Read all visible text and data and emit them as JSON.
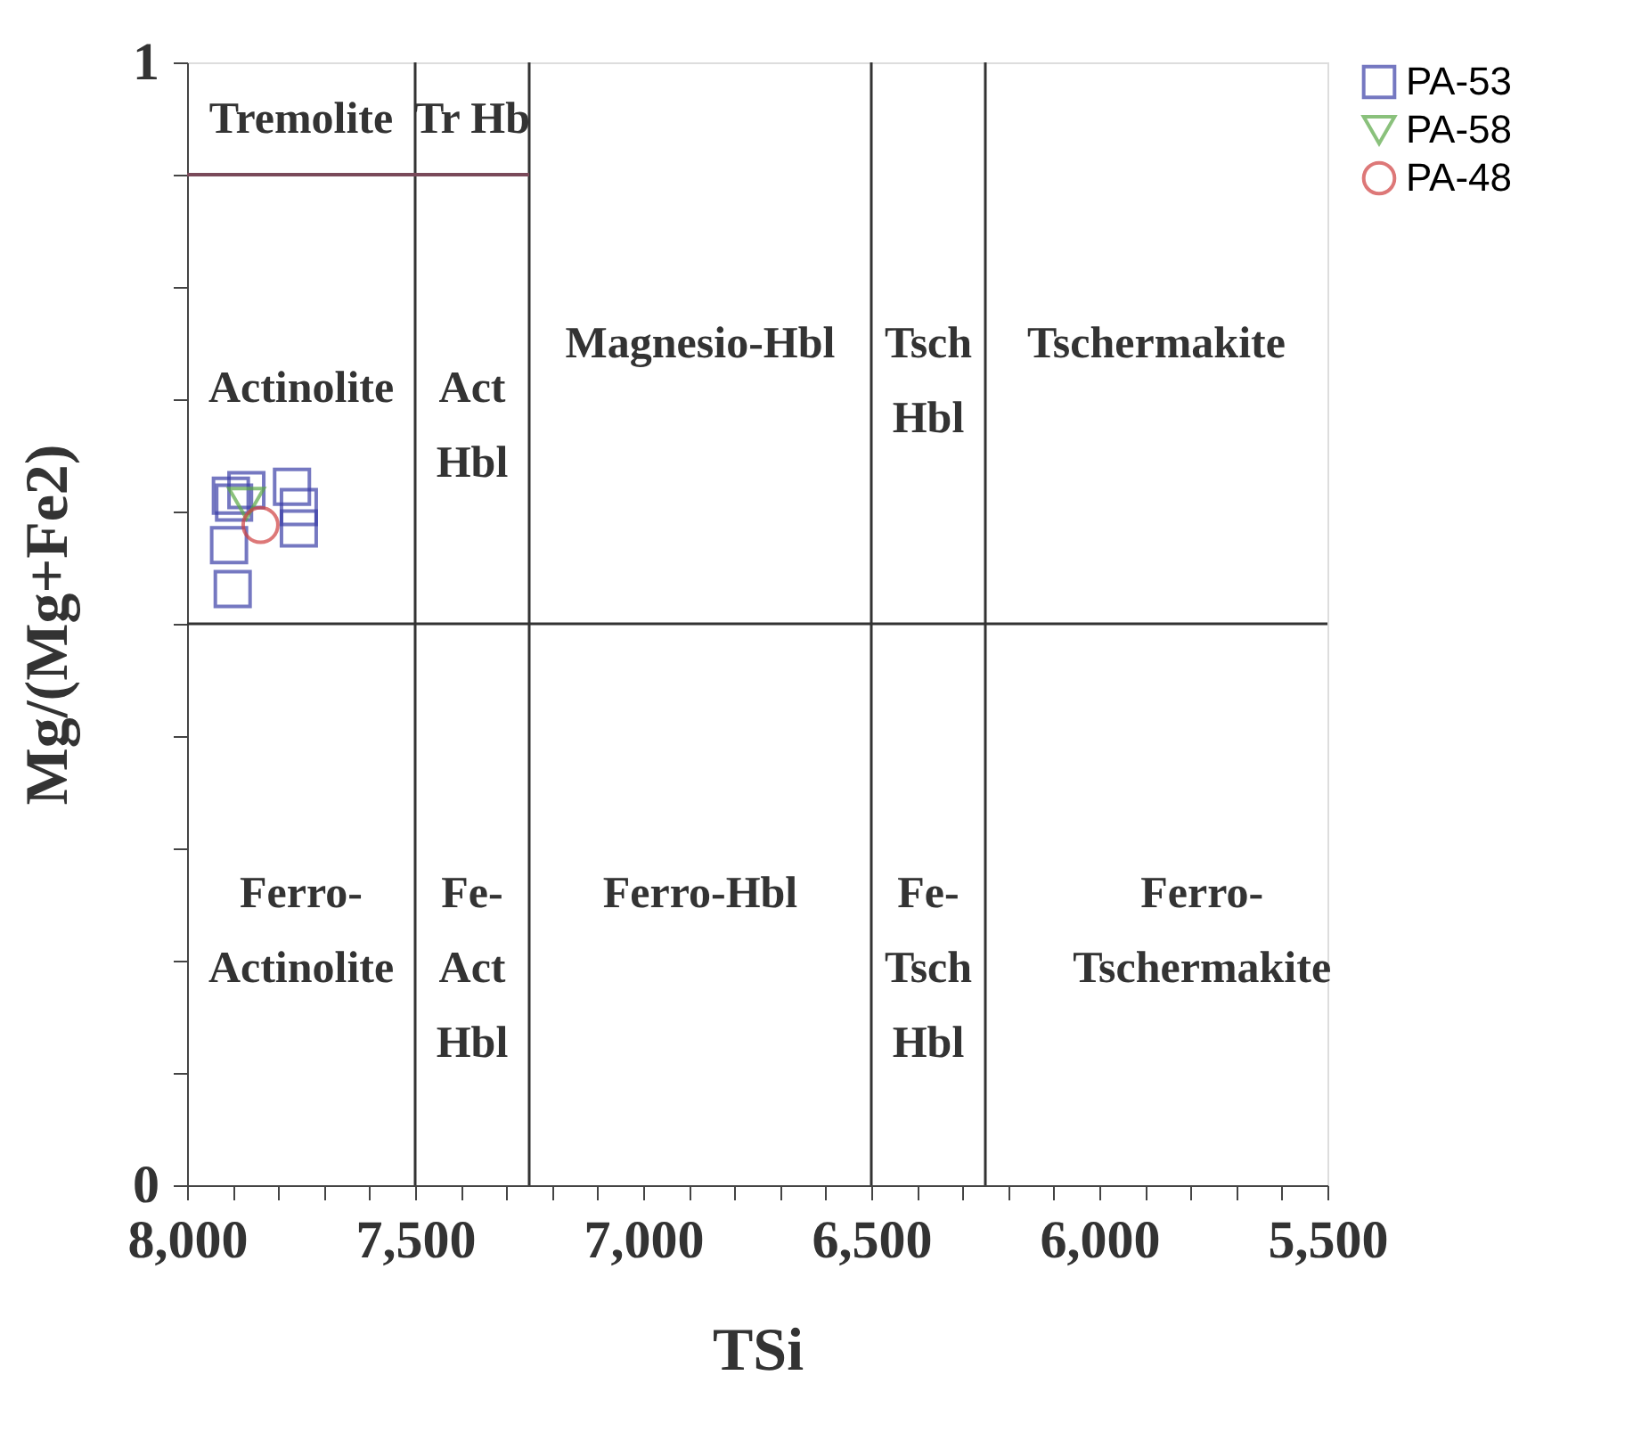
{
  "chart_data": {
    "type": "scatter",
    "xlabel": "TSi",
    "ylabel": "Mg/(Mg+Fe2)",
    "xlim": [
      8000,
      5500
    ],
    "ylim": [
      0,
      1
    ],
    "xticks": [
      {
        "value": 8000,
        "label": "8,000"
      },
      {
        "value": 7900,
        "label": null
      },
      {
        "value": 7800,
        "label": null
      },
      {
        "value": 7700,
        "label": null
      },
      {
        "value": 7600,
        "label": null
      },
      {
        "value": 7500,
        "label": "7,500"
      },
      {
        "value": 7400,
        "label": null
      },
      {
        "value": 7300,
        "label": null
      },
      {
        "value": 7200,
        "label": null
      },
      {
        "value": 7100,
        "label": null
      },
      {
        "value": 7000,
        "label": "7,000"
      },
      {
        "value": 6900,
        "label": null
      },
      {
        "value": 6800,
        "label": null
      },
      {
        "value": 6700,
        "label": null
      },
      {
        "value": 6600,
        "label": null
      },
      {
        "value": 6500,
        "label": "6,500"
      },
      {
        "value": 6400,
        "label": null
      },
      {
        "value": 6300,
        "label": null
      },
      {
        "value": 6200,
        "label": null
      },
      {
        "value": 6100,
        "label": null
      },
      {
        "value": 6000,
        "label": "6,000"
      },
      {
        "value": 5900,
        "label": null
      },
      {
        "value": 5800,
        "label": null
      },
      {
        "value": 5700,
        "label": null
      },
      {
        "value": 5600,
        "label": null
      },
      {
        "value": 5500,
        "label": "5,500"
      }
    ],
    "yticks": [
      0,
      {
        "value": 0.1,
        "label": null
      },
      {
        "value": 0.2,
        "label": null
      },
      {
        "value": 0.3,
        "label": null
      },
      {
        "value": 0.4,
        "label": null
      },
      {
        "value": 0.5,
        "label": null
      },
      {
        "value": 0.6,
        "label": null
      },
      {
        "value": 0.7,
        "label": null
      },
      {
        "value": 0.8,
        "label": null
      },
      {
        "value": 0.9,
        "label": null
      },
      1
    ],
    "grid": false,
    "legend": "right",
    "series": [
      {
        "name": "PA-53",
        "color": "#3b3fa8",
        "marker": "square",
        "x": [
          7897,
          7770,
          7755,
          7755,
          7908,
          7900,
          7870,
          7904
        ],
        "values": [
          0.608,
          0.622,
          0.604,
          0.585,
          0.57,
          0.531,
          0.619,
          0.614
        ]
      },
      {
        "name": "PA-58",
        "color": "#5aa845",
        "marker": "triangle",
        "x": [
          7870
        ],
        "values": [
          0.607
        ]
      },
      {
        "name": "PA-48",
        "color": "#d04040",
        "marker": "circle",
        "x": [
          7839
        ],
        "values": [
          0.588
        ]
      },
      {
        "type": "line",
        "color": "#7a4a5a",
        "x": [
          8000,
          7250
        ],
        "values": [
          0.9,
          0.9
        ]
      }
    ],
    "ref_lines": [
      {
        "axis": "x",
        "value": 7500
      },
      {
        "axis": "x",
        "value": 7250
      },
      {
        "axis": "x",
        "value": 6500
      },
      {
        "axis": "x",
        "value": 6250
      },
      {
        "axis": "y",
        "value": 0.5
      }
    ],
    "annotations": [
      "Tremolite",
      "Tr Hb",
      "Actinolite",
      "Act\nHbl",
      "Magnesio-Hbl",
      "Tsch\nHbl",
      "Tschermakite",
      "Ferro-\nActinolite",
      "Fe-\nAct\nHbl",
      "Ferro-Hbl",
      "Fe-\nTsch\nHbl",
      "Ferro-\nTschermakite"
    ]
  }
}
